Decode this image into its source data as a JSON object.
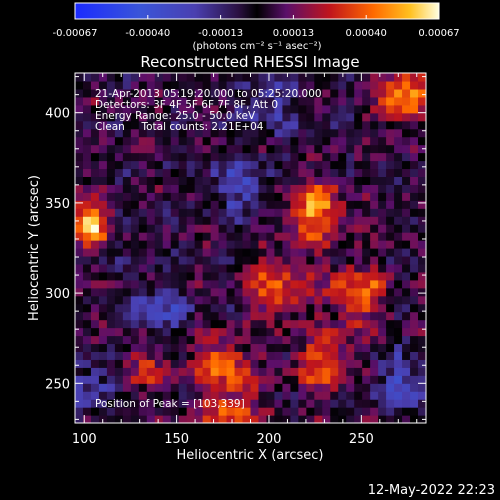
{
  "chart_data": {
    "type": "heatmap",
    "title": "Reconstructed RHESSI Image",
    "xlabel": "Heliocentric X (arcsec)",
    "ylabel": "Heliocentric Y (arcsec)",
    "xlim": [
      95,
      285
    ],
    "ylim": [
      228,
      422
    ],
    "x_ticks": [
      100,
      150,
      200,
      250
    ],
    "y_ticks": [
      250,
      300,
      350,
      400
    ],
    "colorbar": {
      "label": "(photons cm⁻² s⁻¹ asec⁻²)",
      "ticks": [
        "-0.00067",
        "-0.00040",
        "-0.00013",
        "0.00013",
        "0.00040",
        "0.00067"
      ],
      "range": [
        -0.00067,
        0.00067
      ]
    },
    "annotations": [
      "21-Apr-2013 05:19:20.000 to 05:25:20.000",
      "Detectors: 3F 4F 5F 6F 7F 8F, Att 0",
      "Energy Range: 25.0 - 50.0 keV",
      "Clean     Total counts: 2.21E+04"
    ],
    "peak_label": "Position of Peak = [103,339]",
    "peak": {
      "x": 103,
      "y": 339
    },
    "bright_sources": [
      {
        "x": 103,
        "y": 339,
        "value": 0.00067
      },
      {
        "x": 225,
        "y": 345,
        "value": 0.00052
      },
      {
        "x": 275,
        "y": 412,
        "value": 0.0005
      },
      {
        "x": 205,
        "y": 302,
        "value": 0.0004
      },
      {
        "x": 248,
        "y": 300,
        "value": 0.00042
      },
      {
        "x": 175,
        "y": 262,
        "value": 0.00036
      },
      {
        "x": 230,
        "y": 262,
        "value": 0.00038
      },
      {
        "x": 180,
        "y": 235,
        "value": 0.00035
      },
      {
        "x": 130,
        "y": 260,
        "value": 0.00025
      }
    ],
    "dark_regions": [
      {
        "x": 185,
        "y": 360,
        "value": -0.0003
      },
      {
        "x": 200,
        "y": 405,
        "value": -0.00025
      },
      {
        "x": 140,
        "y": 290,
        "value": -0.00028
      },
      {
        "x": 270,
        "y": 250,
        "value": -0.0003
      },
      {
        "x": 105,
        "y": 250,
        "value": -0.00025
      }
    ]
  },
  "footer_timestamp": "12-May-2022 22:23"
}
